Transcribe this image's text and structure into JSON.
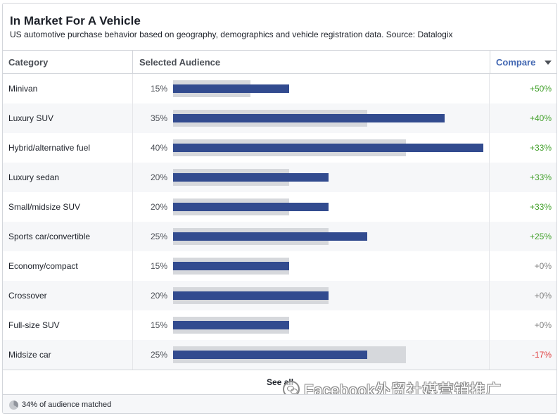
{
  "header": {
    "title": "In Market For A Vehicle",
    "subtitle": "US automotive purchase behavior based on geography, demographics and vehicle registration data. Source: Datalogix"
  },
  "columns": {
    "category": "Category",
    "selected_audience": "Selected Audience",
    "compare": "Compare"
  },
  "rows": [
    {
      "category": "Minivan",
      "percent": "15%",
      "selected": 0.15,
      "baseline": 0.1,
      "compare": "+50%",
      "trend": "pos"
    },
    {
      "category": "Luxury SUV",
      "percent": "35%",
      "selected": 0.35,
      "baseline": 0.25,
      "compare": "+40%",
      "trend": "pos"
    },
    {
      "category": "Hybrid/alternative fuel",
      "percent": "40%",
      "selected": 0.4,
      "baseline": 0.3,
      "compare": "+33%",
      "trend": "pos"
    },
    {
      "category": "Luxury sedan",
      "percent": "20%",
      "selected": 0.2,
      "baseline": 0.15,
      "compare": "+33%",
      "trend": "pos"
    },
    {
      "category": "Small/midsize SUV",
      "percent": "20%",
      "selected": 0.2,
      "baseline": 0.15,
      "compare": "+33%",
      "trend": "pos"
    },
    {
      "category": "Sports car/convertible",
      "percent": "25%",
      "selected": 0.25,
      "baseline": 0.2,
      "compare": "+25%",
      "trend": "pos"
    },
    {
      "category": "Economy/compact",
      "percent": "15%",
      "selected": 0.15,
      "baseline": 0.15,
      "compare": "+0%",
      "trend": "neu"
    },
    {
      "category": "Crossover",
      "percent": "20%",
      "selected": 0.2,
      "baseline": 0.2,
      "compare": "+0%",
      "trend": "neu"
    },
    {
      "category": "Full-size SUV",
      "percent": "15%",
      "selected": 0.15,
      "baseline": 0.15,
      "compare": "+0%",
      "trend": "neu"
    },
    {
      "category": "Midsize car",
      "percent": "25%",
      "selected": 0.25,
      "baseline": 0.3,
      "compare": "-17%",
      "trend": "neg"
    }
  ],
  "see_all": "See all",
  "watermark": "Facebook外贸社媒营销推广",
  "footer": {
    "matched_text": "34% of audience matched",
    "matched_fraction": 0.34
  },
  "colors": {
    "selected_bar": "#324b8f",
    "baseline_bar": "#d6d8dc",
    "positive": "#42a02b",
    "neutral": "#7f7f7f",
    "negative": "#e04040",
    "link": "#4267b2"
  },
  "icons": [
    "chevron-down-icon",
    "pie-chart-icon",
    "wechat-icon"
  ]
}
